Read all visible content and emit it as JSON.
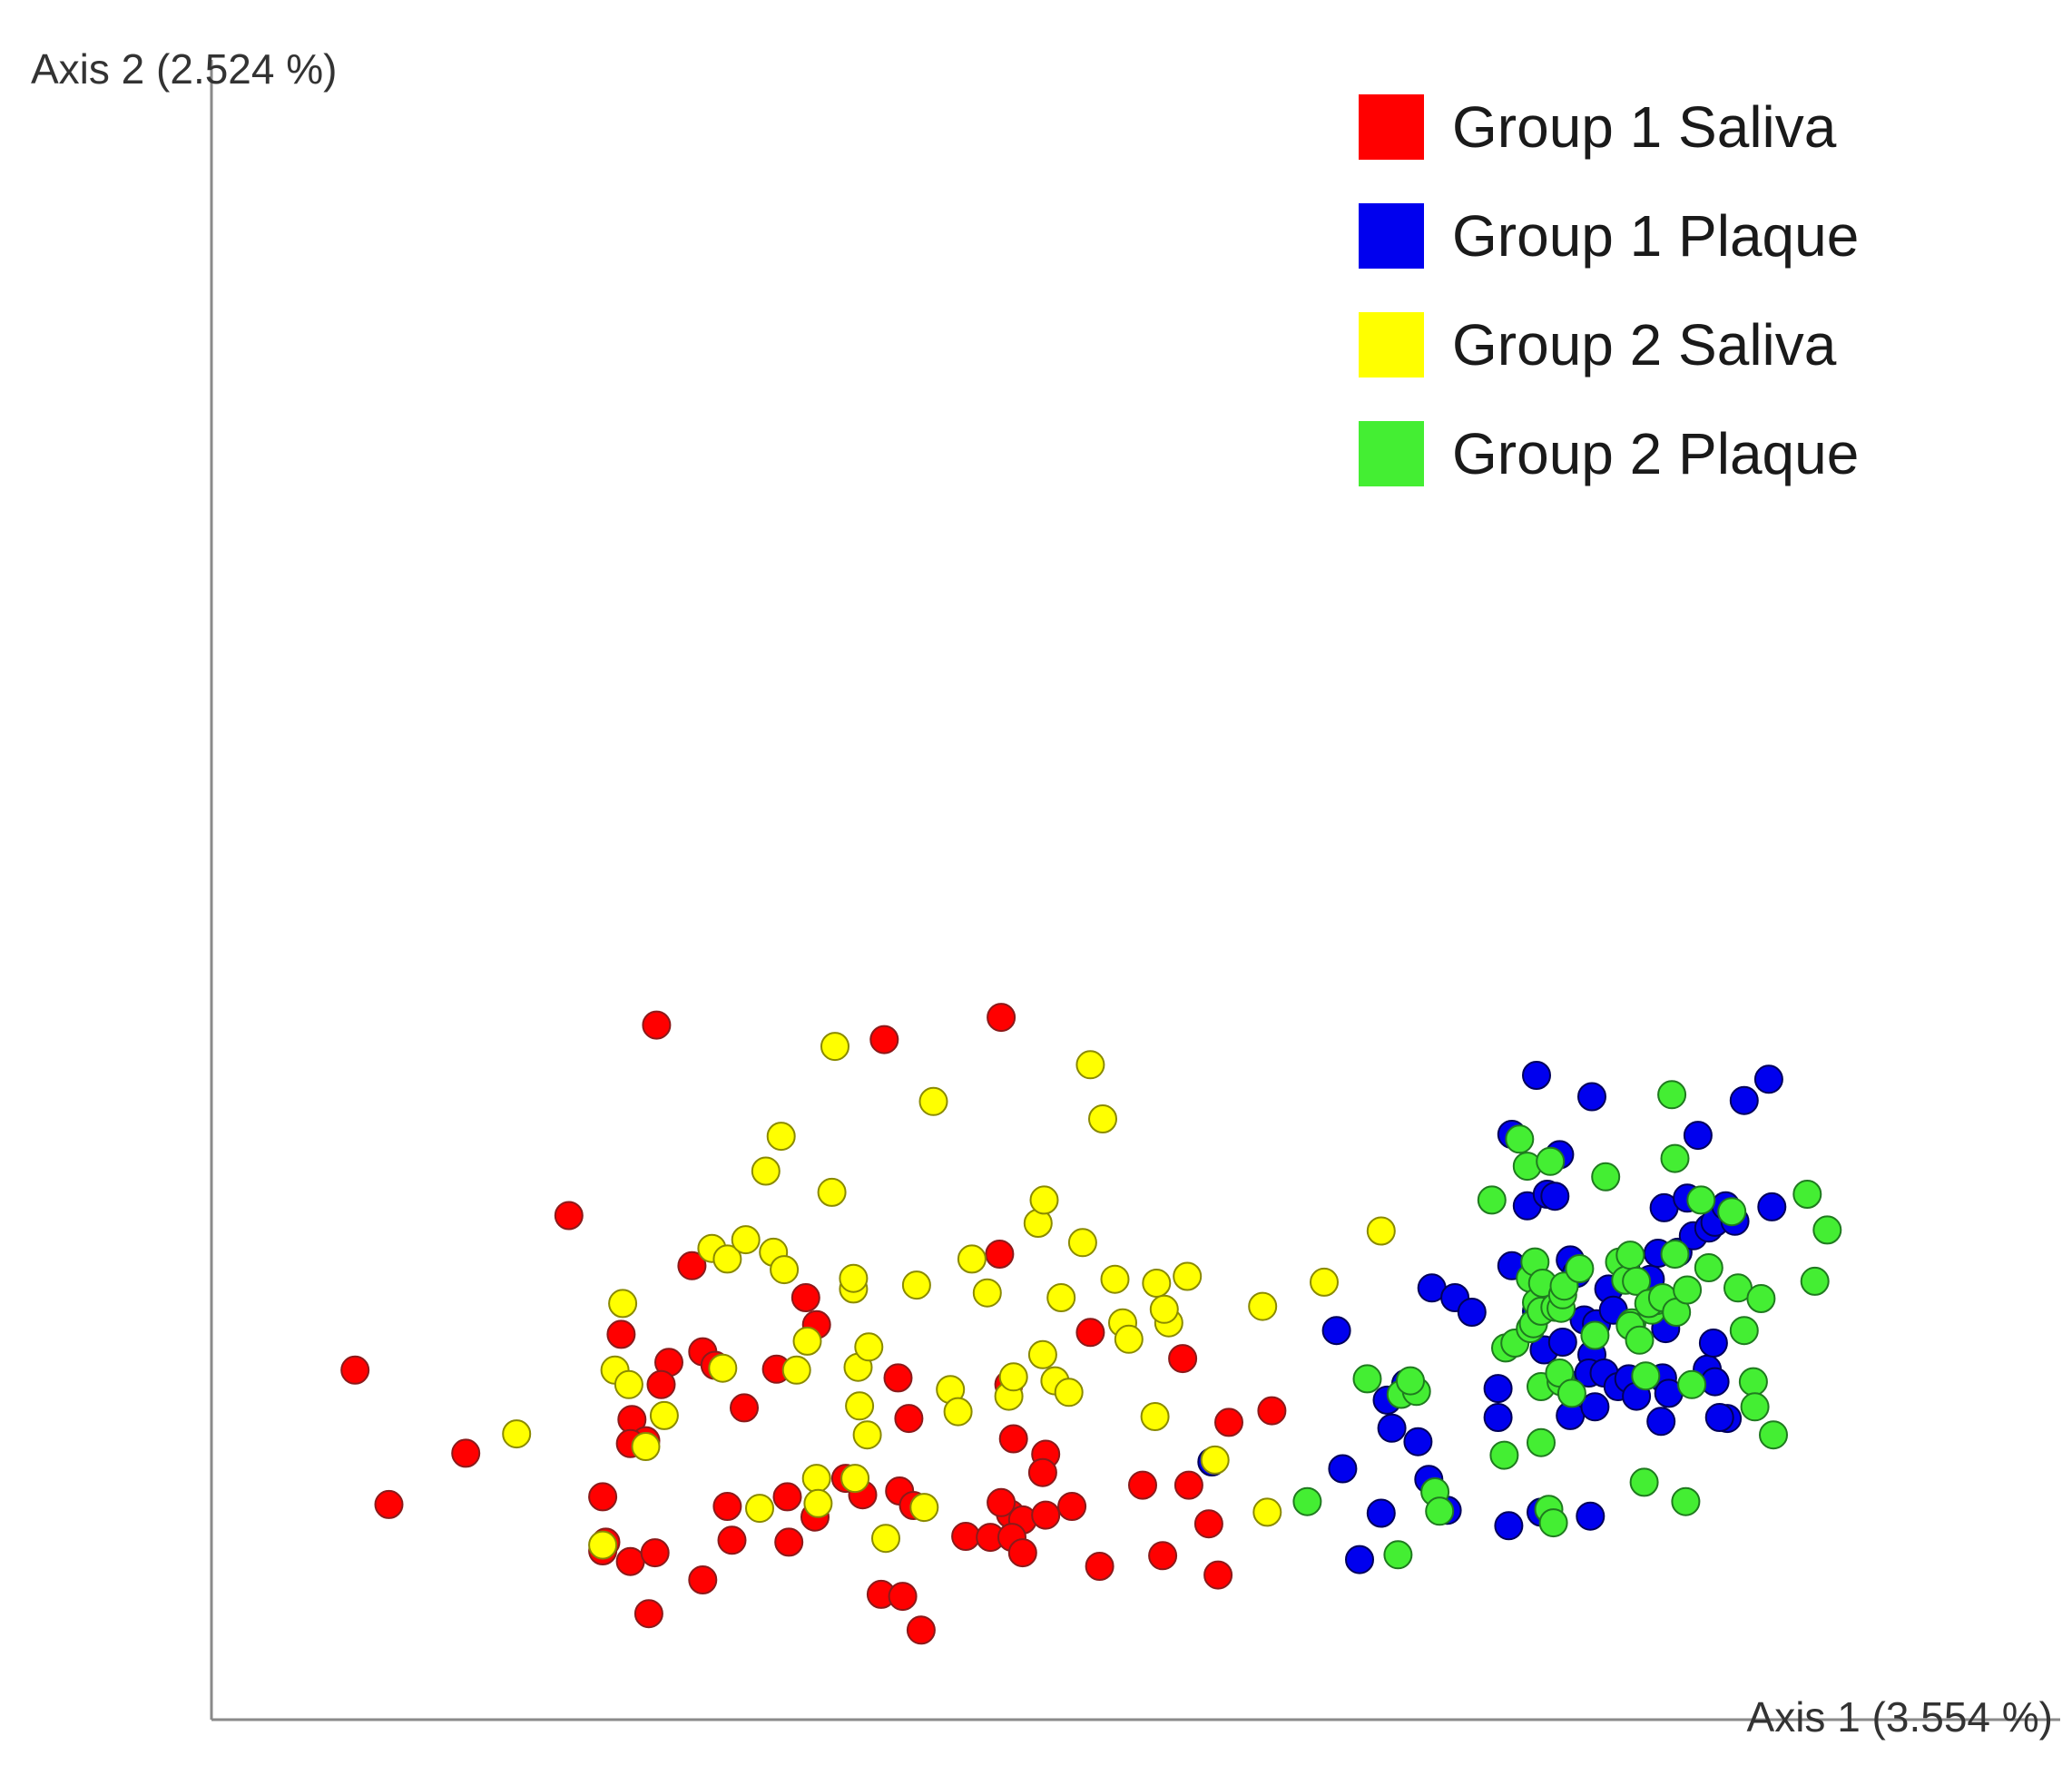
{
  "chart_data": {
    "type": "scatter",
    "title": "",
    "xlabel": "Axis 1 (3.554 %)",
    "ylabel": "Axis 2 (2.524 %)",
    "xlim": [
      0,
      100
    ],
    "ylim": [
      0,
      100
    ],
    "grid": false,
    "legend": "top-right",
    "series": [
      {
        "name": "Group 1 Saliva",
        "color": "#ff0000",
        "stroke": "#8b1a1a",
        "points": [
          [
            4.2,
            31.0
          ],
          [
            6.4,
            17.1
          ],
          [
            11.4,
            22.4
          ],
          [
            18.1,
            47.0
          ],
          [
            21.5,
            34.7
          ],
          [
            20.3,
            17.9
          ],
          [
            20.5,
            13.2
          ],
          [
            20.3,
            12.3
          ],
          [
            22.1,
            11.2
          ],
          [
            22.2,
            25.9
          ],
          [
            23.1,
            23.7
          ],
          [
            23.3,
            5.8
          ],
          [
            23.8,
            66.7
          ],
          [
            24.6,
            31.8
          ],
          [
            24.1,
            29.5
          ],
          [
            22.1,
            23.4
          ],
          [
            23.7,
            12.1
          ],
          [
            26.1,
            41.8
          ],
          [
            26.8,
            32.9
          ],
          [
            27.6,
            31.5
          ],
          [
            26.8,
            9.3
          ],
          [
            28.4,
            16.9
          ],
          [
            29.5,
            27.1
          ],
          [
            28.7,
            13.4
          ],
          [
            32.4,
            13.2
          ],
          [
            34.2,
            35.7
          ],
          [
            31.6,
            31.1
          ],
          [
            32.3,
            17.9
          ],
          [
            33.5,
            38.5
          ],
          [
            34.1,
            15.8
          ],
          [
            36.1,
            19.8
          ],
          [
            37.2,
            18.1
          ],
          [
            38.4,
            7.8
          ],
          [
            38.6,
            65.2
          ],
          [
            39.5,
            30.2
          ],
          [
            40.2,
            26.0
          ],
          [
            39.6,
            18.5
          ],
          [
            39.8,
            7.6
          ],
          [
            40.5,
            17.0
          ],
          [
            41.0,
            4.1
          ],
          [
            43.9,
            13.8
          ],
          [
            45.5,
            13.7
          ],
          [
            46.2,
            67.5
          ],
          [
            46.1,
            43.0
          ],
          [
            46.7,
            29.5
          ],
          [
            47.0,
            23.9
          ],
          [
            46.8,
            16.1
          ],
          [
            46.2,
            17.3
          ],
          [
            47.6,
            15.5
          ],
          [
            46.9,
            13.7
          ],
          [
            47.6,
            12.1
          ],
          [
            49.1,
            22.3
          ],
          [
            49.1,
            16.0
          ],
          [
            48.9,
            20.4
          ],
          [
            50.8,
            16.9
          ],
          [
            52.0,
            34.9
          ],
          [
            52.6,
            10.7
          ],
          [
            55.4,
            19.1
          ],
          [
            56.7,
            11.8
          ],
          [
            58.0,
            32.2
          ],
          [
            58.4,
            19.1
          ],
          [
            59.7,
            15.1
          ],
          [
            60.3,
            9.8
          ],
          [
            61.0,
            25.6
          ],
          [
            63.8,
            26.8
          ]
        ]
      },
      {
        "name": "Group 1 Plaque",
        "color": "#0000ee",
        "stroke": "#00005a",
        "points": [
          [
            59.9,
            21.5
          ],
          [
            68.0,
            35.1
          ],
          [
            68.4,
            20.8
          ],
          [
            69.5,
            11.4
          ],
          [
            70.9,
            16.2
          ],
          [
            71.3,
            27.9
          ],
          [
            71.6,
            25.0
          ],
          [
            72.5,
            29.6
          ],
          [
            73.3,
            23.6
          ],
          [
            74.0,
            19.7
          ],
          [
            74.2,
            39.5
          ],
          [
            75.7,
            38.5
          ],
          [
            75.2,
            16.5
          ],
          [
            76.8,
            37.0
          ],
          [
            78.5,
            29.1
          ],
          [
            78.5,
            26.1
          ],
          [
            79.2,
            14.9
          ],
          [
            79.4,
            41.8
          ],
          [
            79.4,
            55.4
          ],
          [
            80.4,
            48.0
          ],
          [
            81.0,
            61.5
          ],
          [
            81.0,
            37.1
          ],
          [
            81.5,
            33.1
          ],
          [
            81.3,
            16.3
          ],
          [
            81.7,
            49.2
          ],
          [
            82.5,
            53.3
          ],
          [
            82.7,
            33.9
          ],
          [
            82.2,
            49.0
          ],
          [
            83.0,
            29.6
          ],
          [
            83.2,
            42.4
          ],
          [
            83.6,
            41.0
          ],
          [
            84.1,
            36.2
          ],
          [
            84.9,
            35.8
          ],
          [
            84.6,
            59.3
          ],
          [
            83.2,
            26.3
          ],
          [
            84.8,
            27.2
          ],
          [
            84.5,
            15.9
          ],
          [
            84.6,
            32.6
          ],
          [
            84.4,
            30.7
          ],
          [
            85.4,
            30.7
          ],
          [
            85.7,
            39.4
          ],
          [
            86.0,
            37.2
          ],
          [
            86.3,
            29.3
          ],
          [
            86.8,
            41.5
          ],
          [
            87.0,
            30.1
          ],
          [
            87.5,
            28.3
          ],
          [
            88.4,
            40.4
          ],
          [
            88.9,
            43.1
          ],
          [
            89.3,
            47.8
          ],
          [
            89.2,
            30.2
          ],
          [
            89.1,
            25.7
          ],
          [
            89.6,
            28.6
          ],
          [
            89.4,
            35.3
          ],
          [
            90.2,
            43.2
          ],
          [
            91.2,
            44.9
          ],
          [
            91.5,
            55.3
          ],
          [
            90.8,
            48.8
          ],
          [
            92.1,
            31.1
          ],
          [
            92.2,
            45.7
          ],
          [
            92.6,
            46.3
          ],
          [
            92.5,
            33.8
          ],
          [
            93.3,
            48.0
          ],
          [
            92.6,
            29.8
          ],
          [
            93.4,
            26.0
          ],
          [
            92.9,
            26.1
          ],
          [
            93.9,
            46.4
          ],
          [
            94.5,
            58.9
          ],
          [
            96.3,
            47.9
          ],
          [
            96.1,
            61.1
          ]
        ]
      },
      {
        "name": "Group 2 Saliva",
        "color": "#ffff00",
        "stroke": "#8a8a00",
        "points": [
          [
            14.7,
            24.4
          ],
          [
            20.3,
            12.9
          ],
          [
            21.6,
            37.9
          ],
          [
            21.1,
            31.0
          ],
          [
            22.0,
            29.5
          ],
          [
            23.1,
            23.1
          ],
          [
            24.3,
            26.3
          ],
          [
            27.4,
            43.6
          ],
          [
            28.1,
            31.2
          ],
          [
            28.4,
            42.5
          ],
          [
            29.6,
            44.5
          ],
          [
            30.5,
            16.7
          ],
          [
            30.9,
            51.6
          ],
          [
            31.9,
            55.2
          ],
          [
            31.4,
            43.2
          ],
          [
            32.1,
            41.4
          ],
          [
            32.9,
            31.0
          ],
          [
            33.6,
            34.0
          ],
          [
            34.2,
            19.8
          ],
          [
            34.3,
            17.2
          ],
          [
            35.4,
            64.5
          ],
          [
            35.2,
            49.4
          ],
          [
            36.6,
            39.4
          ],
          [
            36.6,
            40.5
          ],
          [
            36.9,
            31.3
          ],
          [
            36.7,
            19.8
          ],
          [
            37.0,
            27.3
          ],
          [
            37.5,
            24.3
          ],
          [
            37.6,
            33.4
          ],
          [
            38.7,
            13.6
          ],
          [
            41.8,
            58.8
          ],
          [
            41.2,
            16.8
          ],
          [
            40.7,
            39.8
          ],
          [
            42.9,
            29.0
          ],
          [
            43.4,
            26.7
          ],
          [
            44.3,
            42.5
          ],
          [
            45.3,
            39.0
          ],
          [
            46.7,
            28.3
          ],
          [
            47.0,
            30.3
          ],
          [
            48.6,
            46.2
          ],
          [
            49.0,
            48.6
          ],
          [
            50.1,
            38.5
          ],
          [
            48.9,
            32.6
          ],
          [
            49.7,
            29.9
          ],
          [
            50.6,
            28.7
          ],
          [
            52.0,
            62.6
          ],
          [
            51.5,
            44.2
          ],
          [
            52.8,
            57.0
          ],
          [
            53.6,
            40.4
          ],
          [
            54.1,
            35.9
          ],
          [
            54.5,
            34.2
          ],
          [
            56.3,
            40.0
          ],
          [
            56.2,
            26.2
          ],
          [
            57.1,
            35.9
          ],
          [
            56.8,
            37.3
          ],
          [
            58.3,
            40.7
          ],
          [
            60.1,
            21.7
          ],
          [
            63.2,
            37.6
          ],
          [
            63.5,
            16.3
          ],
          [
            67.2,
            40.1
          ],
          [
            70.9,
            45.4
          ]
        ]
      },
      {
        "name": "Group 2 Plaque",
        "color": "#44ee33",
        "stroke": "#1f7a1f",
        "points": [
          [
            66.1,
            17.4
          ],
          [
            70.0,
            30.1
          ],
          [
            72.0,
            11.9
          ],
          [
            72.2,
            28.5
          ],
          [
            73.2,
            28.8
          ],
          [
            72.8,
            29.9
          ],
          [
            74.4,
            18.4
          ],
          [
            74.7,
            16.4
          ],
          [
            78.1,
            48.6
          ],
          [
            79.0,
            33.3
          ],
          [
            78.9,
            22.2
          ],
          [
            79.6,
            33.8
          ],
          [
            79.9,
            54.9
          ],
          [
            80.4,
            52.1
          ],
          [
            80.6,
            35.3
          ],
          [
            80.6,
            40.5
          ],
          [
            80.9,
            42.2
          ],
          [
            80.8,
            35.8
          ],
          [
            81.3,
            29.3
          ],
          [
            81.0,
            38.0
          ],
          [
            81.3,
            37.1
          ],
          [
            81.4,
            40.0
          ],
          [
            81.9,
            52.6
          ],
          [
            81.8,
            16.6
          ],
          [
            81.3,
            23.5
          ],
          [
            82.1,
            15.2
          ],
          [
            82.6,
            29.8
          ],
          [
            82.2,
            37.5
          ],
          [
            82.5,
            30.7
          ],
          [
            82.6,
            37.4
          ],
          [
            82.7,
            38.8
          ],
          [
            82.8,
            39.7
          ],
          [
            83.3,
            28.6
          ],
          [
            83.8,
            41.5
          ],
          [
            84.8,
            34.6
          ],
          [
            85.5,
            51.0
          ],
          [
            86.4,
            42.2
          ],
          [
            86.8,
            40.3
          ],
          [
            87.2,
            35.9
          ],
          [
            87.1,
            42.9
          ],
          [
            87.1,
            35.6
          ],
          [
            87.7,
            34.1
          ],
          [
            87.5,
            40.2
          ],
          [
            88.1,
            30.4
          ],
          [
            88.0,
            19.4
          ],
          [
            88.5,
            37.2
          ],
          [
            88.8,
            38.2
          ],
          [
            88.3,
            37.9
          ],
          [
            89.8,
            59.5
          ],
          [
            90.0,
            52.9
          ],
          [
            89.2,
            38.5
          ],
          [
            90.1,
            37.0
          ],
          [
            90.0,
            43.0
          ],
          [
            90.8,
            39.3
          ],
          [
            91.1,
            29.5
          ],
          [
            90.7,
            17.4
          ],
          [
            91.7,
            48.6
          ],
          [
            92.2,
            41.6
          ],
          [
            93.7,
            47.4
          ],
          [
            94.1,
            39.5
          ],
          [
            94.5,
            35.1
          ],
          [
            95.1,
            29.8
          ],
          [
            95.6,
            38.4
          ],
          [
            95.2,
            27.2
          ],
          [
            96.4,
            24.3
          ],
          [
            99.1,
            40.2
          ],
          [
            99.9,
            45.5
          ],
          [
            98.6,
            49.2
          ]
        ]
      }
    ]
  }
}
